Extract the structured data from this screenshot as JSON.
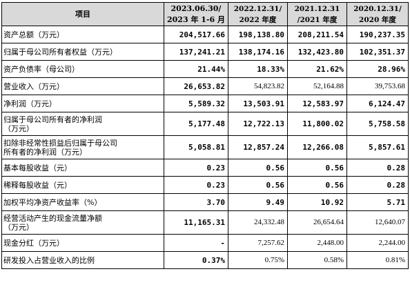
{
  "header": {
    "item": "项目",
    "col1": [
      "2023.06.30/",
      "2023 年 1-6 月"
    ],
    "col2": [
      "2022.12.31/",
      "2022 年度"
    ],
    "col3": [
      "2021.12.31",
      "/2021 年度"
    ],
    "col4": [
      "2020.12.31/",
      "2020 年度"
    ]
  },
  "rows": [
    {
      "label": [
        "资产总额（万元）"
      ],
      "values": [
        "204,517.66",
        "198,138.80",
        "208,211.54",
        "190,237.35"
      ],
      "bold": [
        true,
        true,
        true,
        true
      ]
    },
    {
      "label": [
        "归属于母公司所有者权益（万元）"
      ],
      "values": [
        "137,241.21",
        "138,174.16",
        "132,423.80",
        "102,351.37"
      ],
      "bold": [
        true,
        true,
        true,
        true
      ]
    },
    {
      "label": [
        "资产负债率（母公司）"
      ],
      "values": [
        "21.44%",
        "18.33%",
        "21.62%",
        "28.96%"
      ],
      "bold": [
        true,
        true,
        true,
        true
      ]
    },
    {
      "label": [
        "营业收入（万元）"
      ],
      "values": [
        "26,653.82",
        "54,823.82",
        "52,164.88",
        "39,753.68"
      ],
      "bold": [
        true,
        false,
        false,
        false
      ]
    },
    {
      "label": [
        "净利润（万元）"
      ],
      "values": [
        "5,589.32",
        "13,503.91",
        "12,583.97",
        "6,124.47"
      ],
      "bold": [
        true,
        true,
        true,
        true
      ]
    },
    {
      "label": [
        "归属于母公司所有者的净利润",
        "（万元）"
      ],
      "values": [
        "5,177.48",
        "12,722.13",
        "11,800.02",
        "5,758.58"
      ],
      "bold": [
        true,
        true,
        true,
        true
      ]
    },
    {
      "label": [
        "扣除非经常性损益后归属于母公司",
        "所有者的净利润（万元）"
      ],
      "values": [
        "5,058.81",
        "12,857.24",
        "12,266.08",
        "5,857.61"
      ],
      "bold": [
        true,
        true,
        true,
        true
      ]
    },
    {
      "label": [
        "基本每股收益（元）"
      ],
      "values": [
        "0.23",
        "0.56",
        "0.56",
        "0.28"
      ],
      "bold": [
        true,
        true,
        true,
        true
      ]
    },
    {
      "label": [
        "稀释每股收益（元）"
      ],
      "values": [
        "0.23",
        "0.56",
        "0.56",
        "0.28"
      ],
      "bold": [
        true,
        true,
        true,
        true
      ]
    },
    {
      "label": [
        "加权平均净资产收益率（%）"
      ],
      "values": [
        "3.70",
        "9.49",
        "10.92",
        "5.71"
      ],
      "bold": [
        true,
        true,
        true,
        true
      ]
    },
    {
      "label": [
        "经营活动产生的现金流量净额",
        "（万元）"
      ],
      "values": [
        "11,165.31",
        "24,332.48",
        "26,654.64",
        "12,640.07"
      ],
      "bold": [
        true,
        false,
        false,
        false
      ]
    },
    {
      "label": [
        "现金分红（万元）"
      ],
      "values": [
        "-",
        "7,257.62",
        "2,448.00",
        "2,244.00"
      ],
      "bold": [
        true,
        false,
        false,
        false
      ]
    },
    {
      "label": [
        "研发投入占营业收入的比例"
      ],
      "values": [
        "0.37%",
        "0.75%",
        "0.58%",
        "0.81%"
      ],
      "bold": [
        true,
        false,
        false,
        false
      ]
    }
  ]
}
